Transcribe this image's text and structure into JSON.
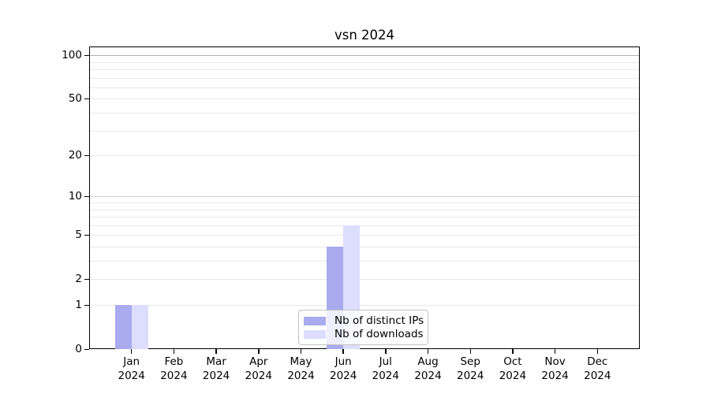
{
  "chart_data": {
    "type": "bar",
    "title": "vsn 2024",
    "categories": [
      "Jan",
      "Feb",
      "Mar",
      "Apr",
      "May",
      "Jun",
      "Jul",
      "Aug",
      "Sep",
      "Oct",
      "Nov",
      "Dec"
    ],
    "xtick_year_line": "2024",
    "series": [
      {
        "name": "Nb of distinct IPs",
        "color": "#aaaaee",
        "values": [
          1,
          0,
          0,
          0,
          0,
          4,
          0,
          0,
          0,
          0,
          0,
          0
        ]
      },
      {
        "name": "Nb of downloads",
        "color": "#ddddff",
        "values": [
          1,
          0,
          0,
          0,
          0,
          6,
          0,
          0,
          0,
          0,
          0,
          0
        ]
      }
    ],
    "yscale": "log10(1+x)",
    "ytick_values": [
      0,
      1,
      2,
      5,
      10,
      20,
      50,
      100
    ],
    "minor_grid_values": [
      1,
      2,
      3,
      4,
      5,
      6,
      7,
      8,
      9,
      20,
      30,
      40,
      50,
      60,
      70,
      80,
      90
    ],
    "decade_grid_values": [
      10,
      100
    ],
    "ylim": [
      0,
      110
    ],
    "grid": "horizontal",
    "legend_position": "lower center",
    "grid_color_minor": "#e8e8e8",
    "grid_color_decade10": "#d2d2d2",
    "grid_color_decade100": "#b0b0b0"
  }
}
